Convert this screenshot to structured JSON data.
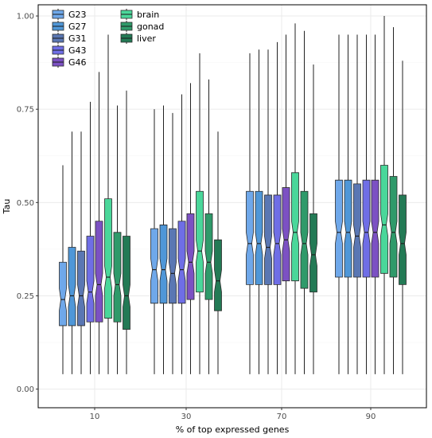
{
  "chart_data": {
    "type": "boxplot",
    "xlabel": "% of top expressed genes",
    "ylabel": "Tau",
    "categories": [
      "10",
      "30",
      "70",
      "90"
    ],
    "ylim": [
      -0.05,
      1.03
    ],
    "yticks": [
      0.0,
      0.25,
      0.5,
      0.75,
      1.0
    ],
    "ytick_labels": [
      "0.00",
      "0.25",
      "0.50",
      "0.75",
      "1.00"
    ],
    "grid": true,
    "notched": true,
    "legend_position": "top-left",
    "series": [
      {
        "name": "G23",
        "color": "#6fa8ea",
        "boxes": [
          {
            "min": 0.04,
            "q1": 0.17,
            "median": 0.24,
            "q3": 0.34,
            "max": 0.6
          },
          {
            "min": 0.04,
            "q1": 0.23,
            "median": 0.32,
            "q3": 0.43,
            "max": 0.75
          },
          {
            "min": 0.04,
            "q1": 0.28,
            "median": 0.39,
            "q3": 0.53,
            "max": 0.9
          },
          {
            "min": 0.04,
            "q1": 0.3,
            "median": 0.42,
            "q3": 0.56,
            "max": 0.95
          }
        ]
      },
      {
        "name": "G27",
        "color": "#4f97d8",
        "boxes": [
          {
            "min": 0.04,
            "q1": 0.17,
            "median": 0.25,
            "q3": 0.38,
            "max": 0.69
          },
          {
            "min": 0.04,
            "q1": 0.23,
            "median": 0.32,
            "q3": 0.44,
            "max": 0.76
          },
          {
            "min": 0.04,
            "q1": 0.28,
            "median": 0.39,
            "q3": 0.53,
            "max": 0.91
          },
          {
            "min": 0.04,
            "q1": 0.3,
            "median": 0.42,
            "q3": 0.56,
            "max": 0.95
          }
        ]
      },
      {
        "name": "G31",
        "color": "#5a77b3",
        "boxes": [
          {
            "min": 0.04,
            "q1": 0.17,
            "median": 0.25,
            "q3": 0.37,
            "max": 0.69
          },
          {
            "min": 0.04,
            "q1": 0.23,
            "median": 0.31,
            "q3": 0.43,
            "max": 0.74
          },
          {
            "min": 0.04,
            "q1": 0.28,
            "median": 0.38,
            "q3": 0.52,
            "max": 0.91
          },
          {
            "min": 0.04,
            "q1": 0.3,
            "median": 0.41,
            "q3": 0.55,
            "max": 0.95
          }
        ]
      },
      {
        "name": "G43",
        "color": "#6f6ee6",
        "boxes": [
          {
            "min": 0.04,
            "q1": 0.18,
            "median": 0.26,
            "q3": 0.41,
            "max": 0.77
          },
          {
            "min": 0.04,
            "q1": 0.23,
            "median": 0.32,
            "q3": 0.45,
            "max": 0.79
          },
          {
            "min": 0.04,
            "q1": 0.28,
            "median": 0.39,
            "q3": 0.52,
            "max": 0.93
          },
          {
            "min": 0.04,
            "q1": 0.3,
            "median": 0.42,
            "q3": 0.56,
            "max": 0.95
          }
        ]
      },
      {
        "name": "G46",
        "color": "#7c51c3",
        "boxes": [
          {
            "min": 0.04,
            "q1": 0.18,
            "median": 0.28,
            "q3": 0.45,
            "max": 0.85
          },
          {
            "min": 0.04,
            "q1": 0.24,
            "median": 0.34,
            "q3": 0.47,
            "max": 0.82
          },
          {
            "min": 0.04,
            "q1": 0.29,
            "median": 0.4,
            "q3": 0.54,
            "max": 0.95
          },
          {
            "min": 0.04,
            "q1": 0.3,
            "median": 0.42,
            "q3": 0.56,
            "max": 0.95
          }
        ]
      },
      {
        "name": "brain",
        "color": "#4ad79a",
        "boxes": [
          {
            "min": 0.04,
            "q1": 0.19,
            "median": 0.3,
            "q3": 0.51,
            "max": 0.95
          },
          {
            "min": 0.04,
            "q1": 0.26,
            "median": 0.37,
            "q3": 0.53,
            "max": 0.9
          },
          {
            "min": 0.04,
            "q1": 0.29,
            "median": 0.42,
            "q3": 0.58,
            "max": 0.98
          },
          {
            "min": 0.04,
            "q1": 0.31,
            "median": 0.44,
            "q3": 0.6,
            "max": 1.0
          }
        ]
      },
      {
        "name": "gonad",
        "color": "#2f9a6a",
        "boxes": [
          {
            "min": 0.04,
            "q1": 0.18,
            "median": 0.28,
            "q3": 0.42,
            "max": 0.76
          },
          {
            "min": 0.04,
            "q1": 0.24,
            "median": 0.34,
            "q3": 0.47,
            "max": 0.83
          },
          {
            "min": 0.04,
            "q1": 0.27,
            "median": 0.39,
            "q3": 0.53,
            "max": 0.96
          },
          {
            "min": 0.04,
            "q1": 0.3,
            "median": 0.42,
            "q3": 0.57,
            "max": 0.97
          }
        ]
      },
      {
        "name": "liver",
        "color": "#237a55",
        "boxes": [
          {
            "min": 0.04,
            "q1": 0.16,
            "median": 0.25,
            "q3": 0.41,
            "max": 0.8
          },
          {
            "min": 0.04,
            "q1": 0.21,
            "median": 0.29,
            "q3": 0.4,
            "max": 0.69
          },
          {
            "min": 0.04,
            "q1": 0.26,
            "median": 0.36,
            "q3": 0.47,
            "max": 0.87
          },
          {
            "min": 0.04,
            "q1": 0.28,
            "median": 0.39,
            "q3": 0.52,
            "max": 0.88
          }
        ]
      }
    ]
  }
}
